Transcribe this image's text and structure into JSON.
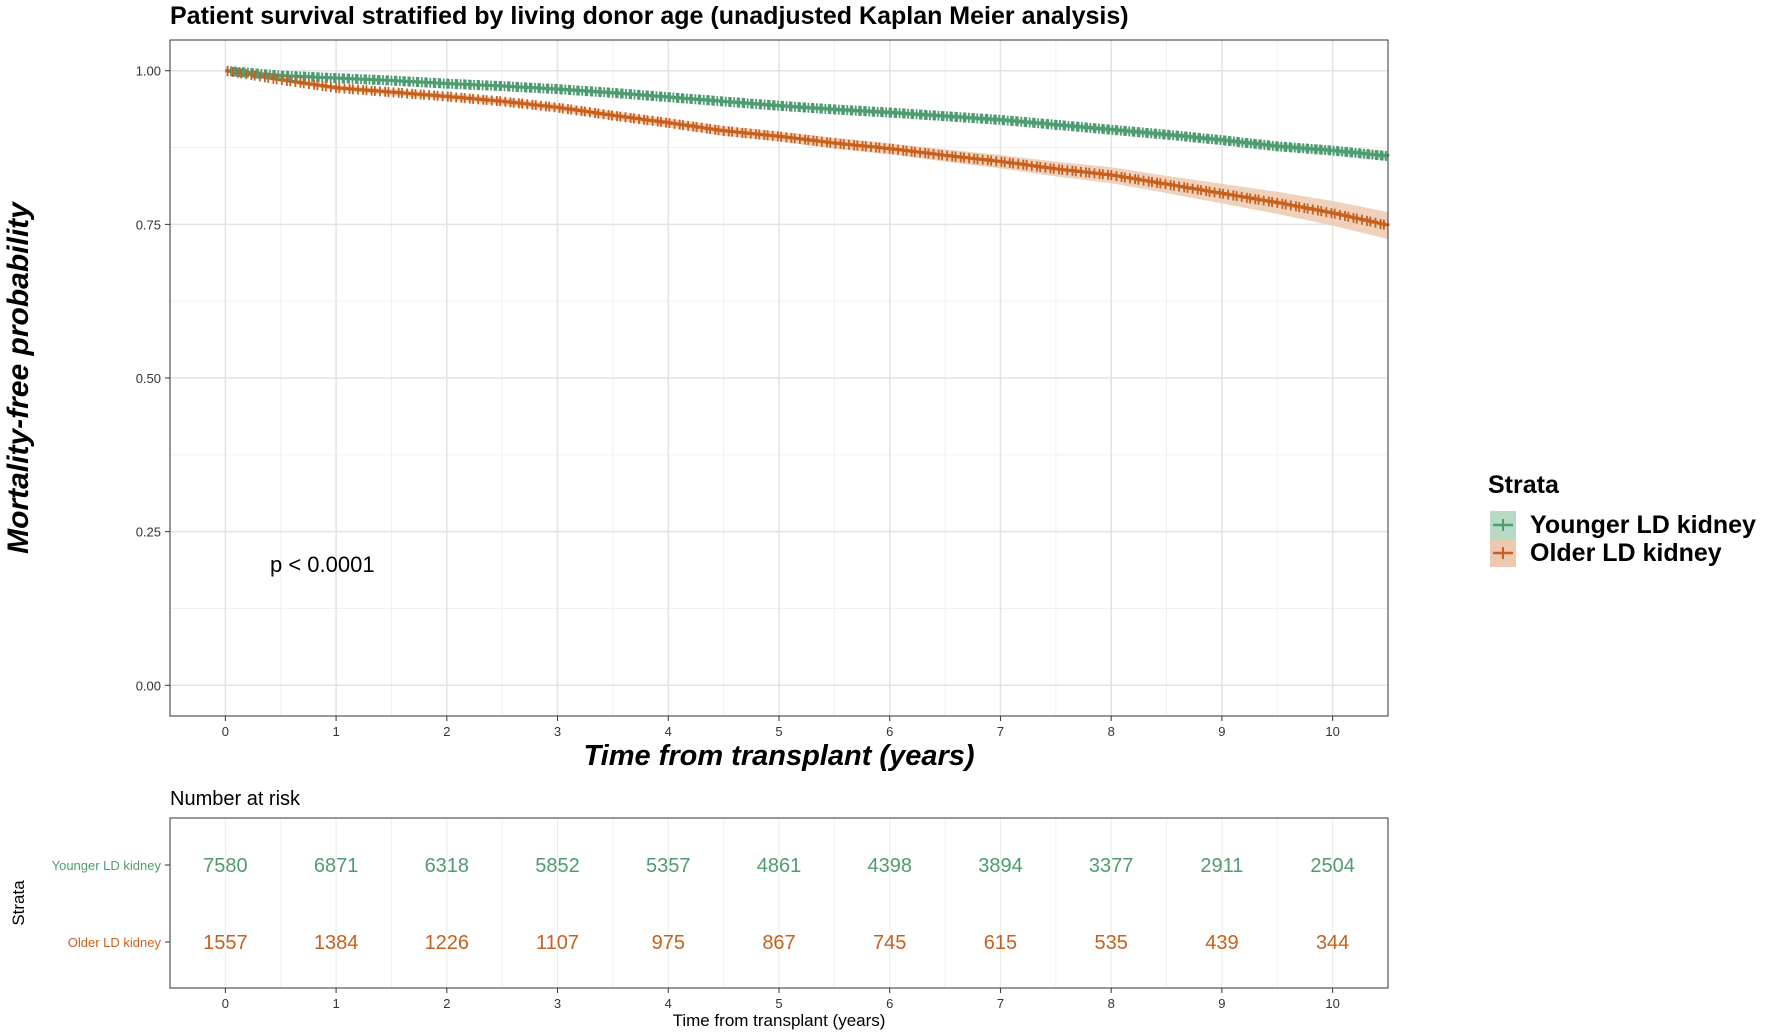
{
  "chart_data": [
    {
      "type": "line",
      "subtype": "kaplan-meier",
      "title": "Patient survival stratified by living donor age (unadjusted Kaplan Meier analysis)",
      "xlabel": "Time from transplant (years)",
      "ylabel": "Mortality-free probability",
      "xlim": [
        -0.5,
        10.5
      ],
      "ylim": [
        -0.05,
        1.05
      ],
      "xticks": [
        0,
        1,
        2,
        3,
        4,
        5,
        6,
        7,
        8,
        9,
        10
      ],
      "yticks": [
        0.0,
        0.25,
        0.5,
        0.75,
        1.0
      ],
      "ytick_labels": [
        "0.00",
        "0.25",
        "0.50",
        "0.75",
        "1.00"
      ],
      "grid": true,
      "annotation": "p < 0.0001",
      "legend": {
        "title": "Strata",
        "position": "right"
      },
      "series": [
        {
          "name": "Younger LD kidney",
          "color": "#4f9b72",
          "fill": "#b7d9c6",
          "x": [
            0,
            0.5,
            1,
            1.5,
            2,
            2.5,
            3,
            3.5,
            4,
            4.5,
            5,
            5.5,
            6,
            6.5,
            7,
            7.5,
            8,
            8.5,
            9,
            9.5,
            10,
            10.5
          ],
          "y": [
            1.0,
            0.992,
            0.988,
            0.984,
            0.979,
            0.975,
            0.97,
            0.964,
            0.957,
            0.95,
            0.943,
            0.937,
            0.932,
            0.926,
            0.92,
            0.912,
            0.904,
            0.896,
            0.887,
            0.877,
            0.87,
            0.861
          ],
          "ci_halfwidth": [
            0.0,
            0.002,
            0.002,
            0.002,
            0.002,
            0.002,
            0.003,
            0.003,
            0.003,
            0.003,
            0.003,
            0.004,
            0.004,
            0.004,
            0.004,
            0.004,
            0.005,
            0.005,
            0.005,
            0.006,
            0.006,
            0.007
          ]
        },
        {
          "name": "Older LD kidney",
          "color": "#c8601d",
          "fill": "#ecc9b0",
          "x": [
            0,
            0.5,
            1,
            1.5,
            2,
            2.5,
            3,
            3.5,
            4,
            4.5,
            5,
            5.5,
            6,
            6.5,
            7,
            7.5,
            8,
            8.5,
            9,
            9.5,
            10,
            10.5
          ],
          "y": [
            1.0,
            0.985,
            0.972,
            0.965,
            0.958,
            0.95,
            0.94,
            0.927,
            0.915,
            0.902,
            0.893,
            0.882,
            0.873,
            0.862,
            0.852,
            0.84,
            0.83,
            0.815,
            0.8,
            0.785,
            0.768,
            0.748
          ],
          "ci_halfwidth": [
            0.0,
            0.003,
            0.004,
            0.005,
            0.005,
            0.006,
            0.006,
            0.007,
            0.007,
            0.008,
            0.008,
            0.009,
            0.009,
            0.01,
            0.011,
            0.012,
            0.013,
            0.014,
            0.016,
            0.018,
            0.02,
            0.022
          ]
        }
      ]
    },
    {
      "type": "table",
      "title": "Number at risk",
      "xlabel": "Time from transplant (years)",
      "ylabel": "Strata",
      "xticks": [
        0,
        1,
        2,
        3,
        4,
        5,
        6,
        7,
        8,
        9,
        10
      ],
      "rows": [
        {
          "name": "Younger LD kidney",
          "color": "#4f9b72",
          "values": [
            7580,
            6871,
            6318,
            5852,
            5357,
            4861,
            4398,
            3894,
            3377,
            2911,
            2504
          ]
        },
        {
          "name": "Older LD kidney",
          "color": "#c8601d",
          "values": [
            1557,
            1384,
            1226,
            1107,
            975,
            867,
            745,
            615,
            535,
            439,
            344
          ]
        }
      ]
    }
  ]
}
